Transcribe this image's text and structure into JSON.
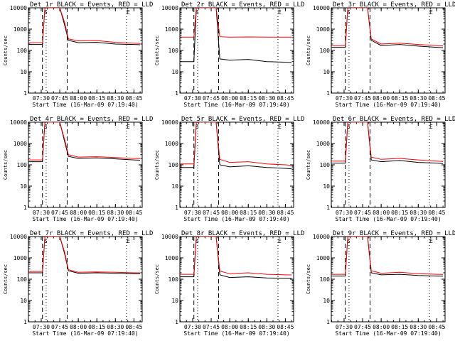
{
  "figure": {
    "y_label": "Counts/sec",
    "x_label": "Start Time (16-Mar-09 07:19:40)",
    "x_ticks": [
      "07:30",
      "07:45",
      "08:00",
      "08:15",
      "08:30",
      "08:45"
    ],
    "y_ticks": [
      "1",
      "10",
      "100",
      "1000",
      "10000"
    ],
    "flare_markers": [
      "S",
      "E"
    ],
    "colors": {
      "events": "#000000",
      "lld": "#ff0000",
      "axes": "#000000",
      "background": "#ffffff"
    }
  },
  "chart_data": [
    {
      "type": "line",
      "title": "Det 1r BLACK = Events, RED = LLD",
      "x": [
        "07:20",
        "07:27",
        "07:31",
        "07:33",
        "07:36",
        "07:45",
        "07:49",
        "07:52",
        "08:00",
        "08:15",
        "08:30",
        "08:45",
        "08:50"
      ],
      "series": [
        {
          "name": "Events",
          "color": "#000000",
          "values": [
            190,
            190,
            190,
            10000,
            10000,
            10000,
            1500,
            300,
            230,
            240,
            200,
            190,
            185
          ]
        },
        {
          "name": "LLD",
          "color": "#ff0000",
          "values": [
            230,
            230,
            230,
            10000,
            10000,
            10000,
            2000,
            350,
            280,
            290,
            240,
            220,
            210
          ]
        }
      ],
      "ylim": [
        1,
        10000
      ],
      "yscale": "log",
      "dashed_lines": [
        "07:31",
        "07:51"
      ],
      "dotted_lines": [
        "07:34",
        "08:39"
      ]
    },
    {
      "type": "line",
      "title": "Det 2r BLACK = Events, RED = LLD",
      "x": [
        "07:20",
        "07:27",
        "07:31",
        "07:33",
        "07:36",
        "07:45",
        "07:49",
        "07:52",
        "08:00",
        "08:15",
        "08:30",
        "08:45",
        "08:50"
      ],
      "series": [
        {
          "name": "Events",
          "color": "#000000",
          "values": [
            30,
            30,
            30,
            10000,
            10000,
            10000,
            10000,
            40,
            35,
            38,
            30,
            28,
            27
          ]
        },
        {
          "name": "LLD",
          "color": "#ff0000",
          "values": [
            420,
            420,
            420,
            10000,
            10000,
            10000,
            10000,
            440,
            420,
            430,
            420,
            420,
            420
          ]
        }
      ],
      "ylim": [
        1,
        10000
      ],
      "yscale": "log",
      "dashed_lines": [
        "07:31",
        "07:51"
      ],
      "dotted_lines": [
        "07:34",
        "08:39"
      ]
    },
    {
      "type": "line",
      "title": "Det 3r BLACK = Events, RED = LLD",
      "x": [
        "07:20",
        "07:27",
        "07:31",
        "07:33",
        "07:36",
        "07:45",
        "07:49",
        "07:52",
        "08:00",
        "08:15",
        "08:30",
        "08:45",
        "08:50"
      ],
      "series": [
        {
          "name": "Events",
          "color": "#000000",
          "values": [
            140,
            140,
            140,
            10000,
            10000,
            10000,
            10000,
            300,
            170,
            190,
            160,
            140,
            135
          ]
        },
        {
          "name": "LLD",
          "color": "#ff0000",
          "values": [
            170,
            170,
            170,
            10000,
            10000,
            10000,
            10000,
            350,
            200,
            220,
            190,
            170,
            165
          ]
        }
      ],
      "ylim": [
        1,
        10000
      ],
      "yscale": "log",
      "dashed_lines": [
        "07:31",
        "07:51"
      ],
      "dotted_lines": [
        "07:34",
        "08:39"
      ]
    },
    {
      "type": "line",
      "title": "Det 4r BLACK = Events, RED = LLD",
      "x": [
        "07:20",
        "07:27",
        "07:31",
        "07:33",
        "07:36",
        "07:45",
        "07:49",
        "07:52",
        "08:00",
        "08:15",
        "08:30",
        "08:45",
        "08:50"
      ],
      "series": [
        {
          "name": "Events",
          "color": "#000000",
          "values": [
            140,
            140,
            140,
            10000,
            10000,
            10000,
            1200,
            250,
            200,
            210,
            190,
            170,
            165
          ]
        },
        {
          "name": "LLD",
          "color": "#ff0000",
          "values": [
            170,
            170,
            170,
            10000,
            10000,
            10000,
            1500,
            300,
            230,
            240,
            220,
            200,
            195
          ]
        }
      ],
      "ylim": [
        1,
        10000
      ],
      "yscale": "log",
      "dashed_lines": [
        "07:31",
        "07:51"
      ],
      "dotted_lines": [
        "07:34",
        "08:39"
      ]
    },
    {
      "type": "line",
      "title": "Det 5r BLACK = Events, RED = LLD",
      "x": [
        "07:20",
        "07:27",
        "07:31",
        "07:33",
        "07:36",
        "07:45",
        "07:49",
        "07:52",
        "08:00",
        "08:15",
        "08:30",
        "08:45",
        "08:50"
      ],
      "series": [
        {
          "name": "Events",
          "color": "#000000",
          "values": [
            75,
            75,
            75,
            10000,
            10000,
            10000,
            10000,
            100,
            80,
            90,
            75,
            68,
            65
          ]
        },
        {
          "name": "LLD",
          "color": "#ff0000",
          "values": [
            110,
            110,
            110,
            10000,
            10000,
            10000,
            10000,
            180,
            130,
            140,
            110,
            100,
            95
          ]
        }
      ],
      "ylim": [
        1,
        10000
      ],
      "yscale": "log",
      "dashed_lines": [
        "07:31",
        "07:51"
      ],
      "dotted_lines": [
        "07:34",
        "08:39"
      ]
    },
    {
      "type": "line",
      "title": "Det 6r BLACK = Events, RED = LLD",
      "x": [
        "07:20",
        "07:27",
        "07:31",
        "07:33",
        "07:36",
        "07:45",
        "07:49",
        "07:52",
        "08:00",
        "08:15",
        "08:30",
        "08:45",
        "08:50"
      ],
      "series": [
        {
          "name": "Events",
          "color": "#000000",
          "values": [
            120,
            120,
            120,
            10000,
            10000,
            10000,
            10000,
            170,
            140,
            160,
            130,
            120,
            115
          ]
        },
        {
          "name": "LLD",
          "color": "#ff0000",
          "values": [
            150,
            150,
            150,
            10000,
            10000,
            10000,
            10000,
            230,
            180,
            200,
            170,
            150,
            145
          ]
        }
      ],
      "ylim": [
        1,
        10000
      ],
      "yscale": "log",
      "dashed_lines": [
        "07:31",
        "07:51"
      ],
      "dotted_lines": [
        "07:34",
        "08:39"
      ]
    },
    {
      "type": "line",
      "title": "Det 7r BLACK = Events, RED = LLD",
      "x": [
        "07:20",
        "07:27",
        "07:31",
        "07:33",
        "07:36",
        "07:45",
        "07:49",
        "07:52",
        "08:00",
        "08:15",
        "08:30",
        "08:45",
        "08:50"
      ],
      "series": [
        {
          "name": "Events",
          "color": "#000000",
          "values": [
            200,
            200,
            200,
            10000,
            10000,
            10000,
            1500,
            250,
            190,
            200,
            190,
            180,
            180
          ]
        },
        {
          "name": "LLD",
          "color": "#ff0000",
          "values": [
            230,
            230,
            230,
            10000,
            10000,
            10000,
            1800,
            280,
            210,
            220,
            210,
            200,
            200
          ]
        }
      ],
      "ylim": [
        1,
        10000
      ],
      "yscale": "log",
      "dashed_lines": [
        "07:31",
        "07:51"
      ],
      "dotted_lines": [
        "07:34",
        "08:39"
      ]
    },
    {
      "type": "line",
      "title": "Det 8r BLACK = Events, RED = LLD",
      "x": [
        "07:20",
        "07:27",
        "07:31",
        "07:33",
        "07:36",
        "07:45",
        "07:49",
        "07:52",
        "08:00",
        "08:15",
        "08:30",
        "08:45",
        "08:50"
      ],
      "series": [
        {
          "name": "Events",
          "color": "#000000",
          "values": [
            130,
            130,
            130,
            10000,
            10000,
            10000,
            10000,
            160,
            120,
            130,
            115,
            110,
            108
          ]
        },
        {
          "name": "LLD",
          "color": "#ff0000",
          "values": [
            170,
            170,
            170,
            10000,
            10000,
            10000,
            10000,
            240,
            180,
            200,
            170,
            160,
            158
          ]
        }
      ],
      "ylim": [
        1,
        10000
      ],
      "yscale": "log",
      "dashed_lines": [
        "07:31",
        "07:51"
      ],
      "dotted_lines": [
        "07:34",
        "08:39"
      ]
    },
    {
      "type": "line",
      "title": "Det 9r BLACK = Events, RED = LLD",
      "x": [
        "07:20",
        "07:27",
        "07:31",
        "07:33",
        "07:36",
        "07:45",
        "07:49",
        "07:52",
        "08:00",
        "08:15",
        "08:30",
        "08:45",
        "08:50"
      ],
      "series": [
        {
          "name": "Events",
          "color": "#000000",
          "values": [
            140,
            140,
            140,
            10000,
            10000,
            10000,
            10000,
            200,
            160,
            170,
            150,
            140,
            138
          ]
        },
        {
          "name": "LLD",
          "color": "#ff0000",
          "values": [
            170,
            170,
            170,
            10000,
            10000,
            10000,
            10000,
            250,
            190,
            210,
            180,
            170,
            168
          ]
        }
      ],
      "ylim": [
        1,
        10000
      ],
      "yscale": "log",
      "dashed_lines": [
        "07:31",
        "07:51"
      ],
      "dotted_lines": [
        "07:34",
        "08:39"
      ]
    }
  ]
}
